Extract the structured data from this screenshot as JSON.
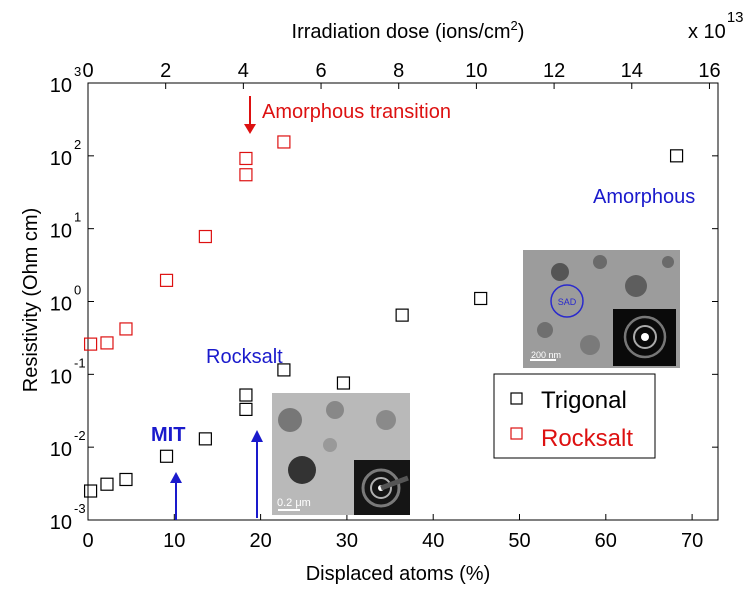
{
  "chart_data": {
    "type": "scatter",
    "x": {
      "label": "Displaced atoms (%)",
      "range": [
        0,
        73
      ],
      "ticks": [
        "0",
        "10",
        "20",
        "30",
        "40",
        "50",
        "60",
        "70"
      ]
    },
    "x_top": {
      "label_main": "Irradiation dose (ions/cm",
      "label_sup": "2",
      "label_end": ")",
      "range": [
        0,
        16.22
      ],
      "ticks": [
        "0",
        "2",
        "4",
        "6",
        "8",
        "10",
        "12",
        "14",
        "16"
      ],
      "multiplier": "x 10",
      "multiplier_exp": "13"
    },
    "y": {
      "label": "Resistivity (Ohm cm)",
      "scale": "log",
      "range": [
        0.001,
        1000
      ],
      "tick_base": "10",
      "tick_exponents": [
        "-3",
        "-2",
        "-1",
        "0",
        "1",
        "2",
        "3"
      ]
    },
    "series": [
      {
        "name": "Trigonal",
        "color": "#000000",
        "marker": "open-square",
        "points": [
          [
            0.3,
            0.0025
          ],
          [
            2.2,
            0.0031
          ],
          [
            4.4,
            0.0036
          ],
          [
            9.1,
            0.0075
          ],
          [
            13.6,
            0.013
          ],
          [
            18.3,
            0.033
          ],
          [
            18.3,
            0.052
          ],
          [
            22.7,
            0.115
          ],
          [
            29.6,
            0.076
          ],
          [
            36.4,
            0.65
          ],
          [
            45.5,
            1.1
          ],
          [
            68.2,
            100
          ]
        ]
      },
      {
        "name": "Rocksalt",
        "color": "#dd1111",
        "marker": "open-square",
        "points": [
          [
            0.3,
            0.26
          ],
          [
            2.2,
            0.27
          ],
          [
            4.4,
            0.42
          ],
          [
            9.1,
            1.95
          ],
          [
            13.6,
            7.8
          ],
          [
            18.3,
            55
          ],
          [
            18.3,
            92
          ],
          [
            22.7,
            155
          ]
        ]
      }
    ],
    "annotations": {
      "amorphous_transition": "Amorphous transition",
      "amorphous": "Amorphous",
      "rocksalt": "Rocksalt",
      "mit": "MIT"
    },
    "inset_labels": {
      "sad": "SAD",
      "scale_200nm": "200 nm",
      "scale_02um": "0.2 μm"
    },
    "legend": {
      "placement": "right",
      "entries": [
        "Trigonal",
        "Rocksalt"
      ]
    },
    "colors": {
      "red_annotation": "#dd1111",
      "blue_annotation": "#1a1acc"
    }
  }
}
